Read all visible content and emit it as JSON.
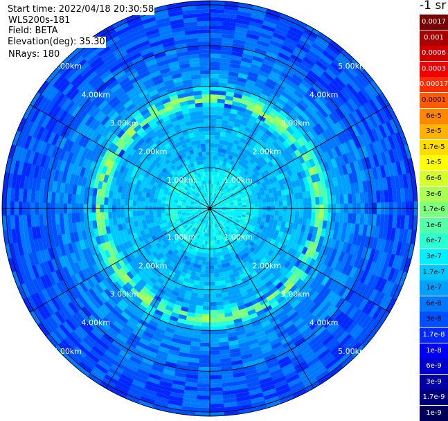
{
  "header": {
    "start_time": "Start time: 2022/04/18 20:30:58",
    "site": "WLS200s-181",
    "field": "Field: BETA",
    "elevation": "Elevation(deg): 35.30",
    "nrays": "NRays: 180"
  },
  "units": "-1 sr",
  "chart_data": {
    "type": "heatmap",
    "projection": "polar",
    "grid": true,
    "ranges_km": [
      1,
      2,
      3,
      4,
      5
    ],
    "range_labels": [
      "1.00km",
      "2.00km",
      "3.00km",
      "4.00km",
      "5.00km"
    ],
    "max_range_km": 5.1,
    "spoke_step_deg": 30,
    "rays": 180,
    "field": "BETA",
    "colorbar": [
      {
        "label": "0.0017",
        "color": "#7a0000",
        "text": "#ffffff"
      },
      {
        "label": "0.001",
        "color": "#a80000",
        "text": "#ffffff"
      },
      {
        "label": "0.0006",
        "color": "#d00000",
        "text": "#ffffff"
      },
      {
        "label": "0.0003",
        "color": "#f20000",
        "text": "#ffffff"
      },
      {
        "label": "0.00017",
        "color": "#ff2c00",
        "text": "#ffffff"
      },
      {
        "label": "0.0001",
        "color": "#ff5a00",
        "text": "#000000"
      },
      {
        "label": "6e-5",
        "color": "#ff8600",
        "text": "#000000"
      },
      {
        "label": "3e-5",
        "color": "#ffb200",
        "text": "#000000"
      },
      {
        "label": "1.7e-5",
        "color": "#ffdc00",
        "text": "#000000"
      },
      {
        "label": "1e-5",
        "color": "#ffff00",
        "text": "#000000"
      },
      {
        "label": "6e-6",
        "color": "#d6ff2a",
        "text": "#000000"
      },
      {
        "label": "3e-6",
        "color": "#aaff55",
        "text": "#000000"
      },
      {
        "label": "1.7e-6",
        "color": "#7fff80",
        "text": "#000000"
      },
      {
        "label": "1e-6",
        "color": "#54ffaa",
        "text": "#000000"
      },
      {
        "label": "6e-7",
        "color": "#2bffd4",
        "text": "#000000"
      },
      {
        "label": "3e-7",
        "color": "#00f0ff",
        "text": "#000000"
      },
      {
        "label": "1.7e-7",
        "color": "#00c8ff",
        "text": "#000000"
      },
      {
        "label": "1e-7",
        "color": "#00a0ff",
        "text": "#000000"
      },
      {
        "label": "6e-8",
        "color": "#0078ff",
        "text": "#000000"
      },
      {
        "label": "3e-8",
        "color": "#0050ff",
        "text": "#000000"
      },
      {
        "label": "1.7e-8",
        "color": "#0028ff",
        "text": "#ffffff"
      },
      {
        "label": "1e-8",
        "color": "#0000f4",
        "text": "#ffffff"
      },
      {
        "label": "6e-9",
        "color": "#0000cc",
        "text": "#ffffff"
      },
      {
        "label": "3e-9",
        "color": "#0000a4",
        "text": "#ffffff"
      },
      {
        "label": "1.7e-9",
        "color": "#00007c",
        "text": "#ffffff"
      },
      {
        "label": "1e-9",
        "color": "#000058",
        "text": "#ffffff"
      }
    ],
    "profile": [
      {
        "range_km": 0.0,
        "level": "3e-7"
      },
      {
        "range_km": 1.0,
        "level": "3e-7"
      },
      {
        "range_km": 1.4,
        "level": "1e-7"
      },
      {
        "range_km": 1.9,
        "level": "1.7e-7"
      },
      {
        "range_km": 2.4,
        "level": "1e-7"
      },
      {
        "range_km": 2.7,
        "level": "3e-6"
      },
      {
        "range_km": 3.0,
        "level": "1e-7"
      },
      {
        "range_km": 3.6,
        "level": "6e-8"
      },
      {
        "range_km": 4.4,
        "level": "3e-8"
      },
      {
        "range_km": 5.1,
        "level": "3e-8"
      }
    ]
  }
}
